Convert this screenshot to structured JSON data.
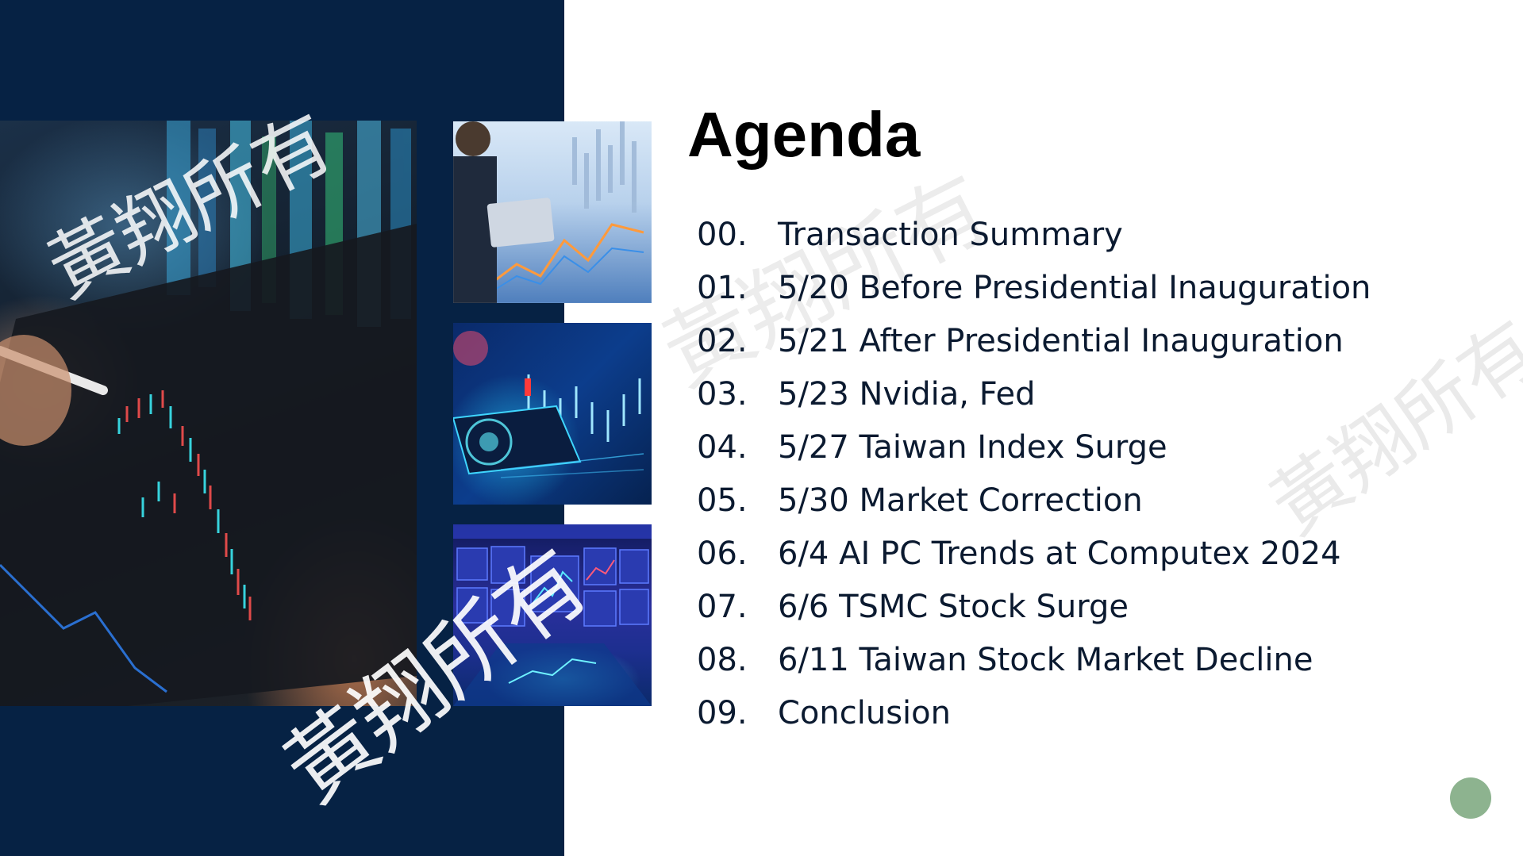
{
  "slide": {
    "title": "Agenda",
    "items": [
      {
        "number": "00.",
        "label": "Transaction Summary"
      },
      {
        "number": "01.",
        "label": "5/20 Before Presidential Inauguration"
      },
      {
        "number": "02.",
        "label": "5/21 After Presidential Inauguration"
      },
      {
        "number": "03.",
        "label": "5/23 Nvidia, Fed"
      },
      {
        "number": "04.",
        "label": "5/27 Taiwan Index Surge"
      },
      {
        "number": "05.",
        "label": "5/30 Market Correction"
      },
      {
        "number": "06.",
        "label": "6/4 AI PC Trends at Computex 2024"
      },
      {
        "number": "07.",
        "label": "6/6 TSMC Stock Surge"
      },
      {
        "number": "08.",
        "label": "6/11 Taiwan Stock Market Decline"
      },
      {
        "number": "09.",
        "label": "Conclusion"
      }
    ]
  },
  "watermark": {
    "text": "黃翔所有"
  },
  "colors": {
    "navy_panel": "#062244",
    "accent_dot": "#8db38f",
    "title": "#000000",
    "body_text": "#0b1a30"
  },
  "images": {
    "main": "stock-chart-tablet-image",
    "thumb_1": "businessman-laptop-chart-image",
    "thumb_2": "smartphone-candlestick-chart-image",
    "thumb_3": "trading-screens-image"
  }
}
